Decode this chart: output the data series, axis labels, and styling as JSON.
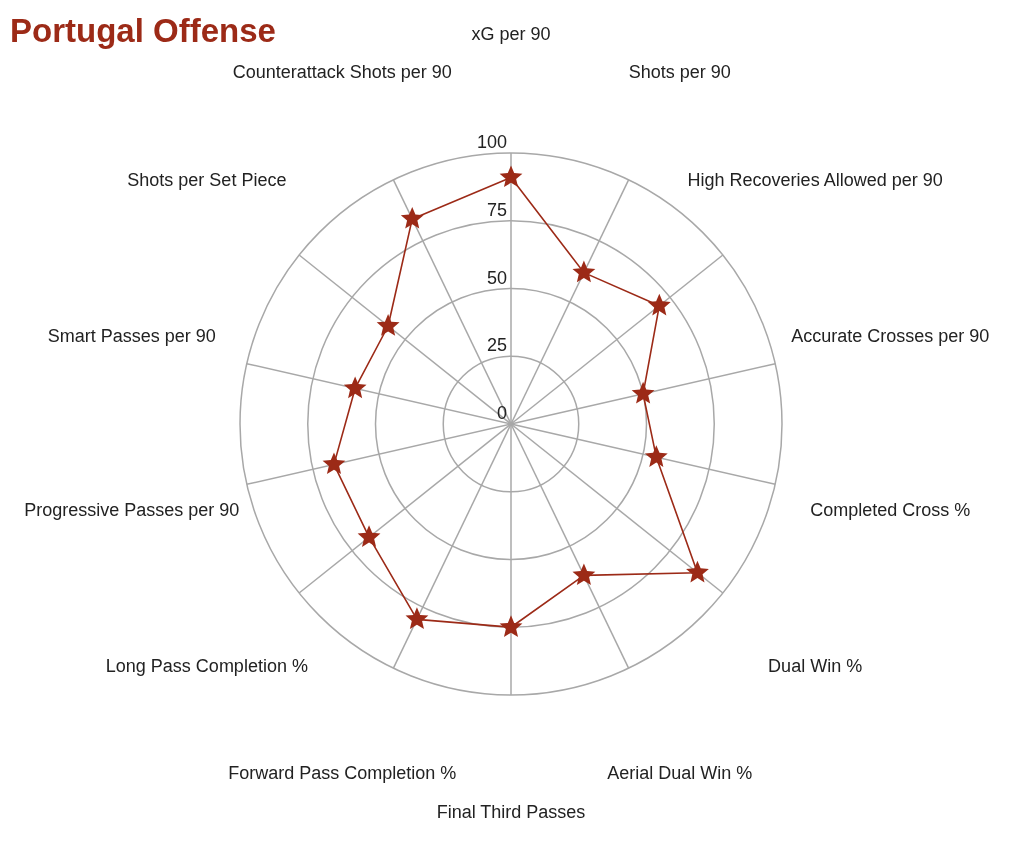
{
  "chart_data": {
    "type": "radar",
    "title": "Portugal Offense",
    "categories": [
      "xG per 90",
      "Shots per 90",
      "High Recoveries Allowed per 90",
      "Accurate Crosses per 90",
      "Completed Cross %",
      "Dual Win %",
      "Aerial Dual Win %",
      "Final Third Passes",
      "Forward Pass Completion %",
      "Long Pass Completion %",
      "Progressive Passes per 90",
      "Smart Passes per 90",
      "Shots per Set Piece",
      "Counterattack Shots per 90"
    ],
    "series": [
      {
        "color": "#9c2a17",
        "values": [
          91,
          62,
          70,
          50,
          55,
          88,
          62,
          75,
          80,
          67,
          67,
          59,
          58,
          84
        ]
      }
    ],
    "ylim": [
      0,
      100
    ],
    "yticks": [
      0,
      25,
      50,
      75,
      100
    ],
    "grid": true,
    "marker": "star"
  }
}
